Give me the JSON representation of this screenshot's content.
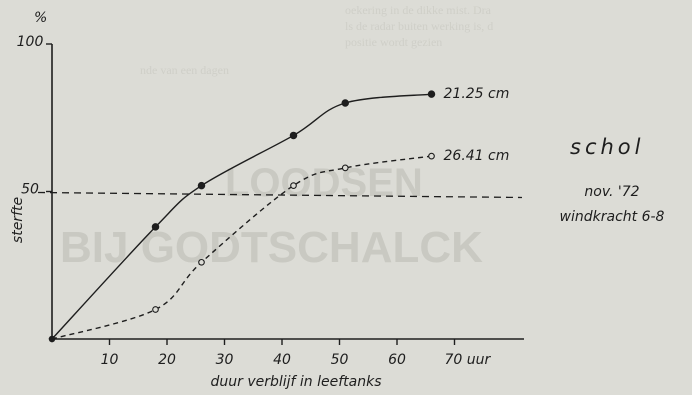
{
  "chart_data": {
    "type": "line",
    "title": "schol",
    "subtitle": [
      "nov. '72",
      "windkracht 6-8"
    ],
    "xlabel": "duur verblijf in leeftanks",
    "ylabel": "sterfte",
    "y_unit": "%",
    "x_unit": "70 uur",
    "xlim": [
      0,
      80
    ],
    "ylim": [
      0,
      100
    ],
    "x_ticks": [
      10,
      20,
      30,
      40,
      50,
      60
    ],
    "y_ticks": [
      50,
      100
    ],
    "y_ref_line": 50,
    "series": [
      {
        "name": "21.25 cm",
        "style": "solid",
        "marker": "filled",
        "points": [
          [
            0,
            0
          ],
          [
            18,
            38
          ],
          [
            26,
            52
          ],
          [
            42,
            69
          ],
          [
            51,
            80
          ],
          [
            66,
            83
          ]
        ]
      },
      {
        "name": "26.41 cm",
        "style": "dashed",
        "marker": "open",
        "points": [
          [
            0,
            0
          ],
          [
            18,
            10
          ],
          [
            26,
            26
          ],
          [
            42,
            52
          ],
          [
            51,
            58
          ],
          [
            66,
            62
          ]
        ]
      }
    ]
  },
  "background_text": {
    "headline1": "LOODSEN",
    "headline2": "BIJ GODTSCHALCK",
    "fragment1": "oekering in de dikke mist. Dra",
    "fragment2": "ls de radar buiten werking is, d",
    "fragment3": "positie wordt gezien",
    "fragment4": "nde van een dagen"
  }
}
